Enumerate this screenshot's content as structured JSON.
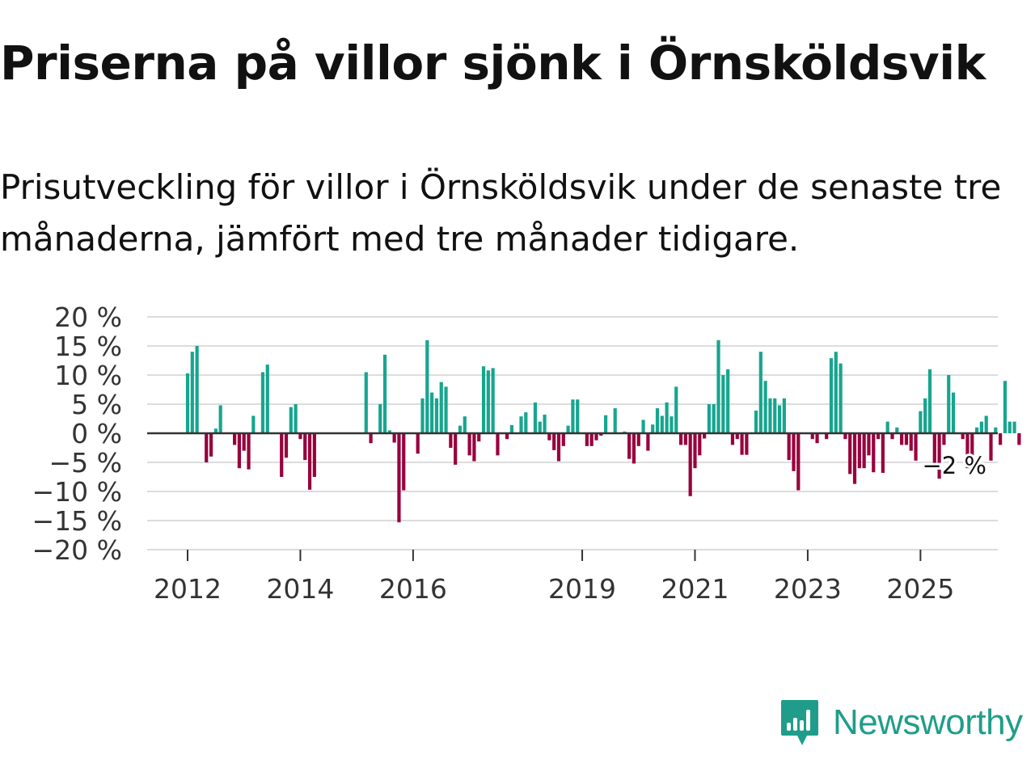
{
  "title": "Priserna på villor sjönk i Örnsköldsvik",
  "subtitle": "Prisutveckling för villor i Örnsköldsvik under de senaste tre månaderna, jämfört med tre månader tidigare.",
  "logo": {
    "text": "Newsworthy",
    "icon": "newsworthy-chart-icon"
  },
  "colors": {
    "positive": "#17a58f",
    "negative": "#98003d",
    "grid": "#dcdcdc",
    "zero_line": "#333333",
    "brand": "#1f9d8a"
  },
  "chart_data": {
    "type": "bar",
    "title": "Priserna på villor sjönk i Örnsköldsvik",
    "ylabel": "",
    "xlabel": "",
    "unit": "%",
    "ylim": [
      -20,
      20
    ],
    "y_ticks": [
      20,
      15,
      10,
      5,
      0,
      -5,
      -10,
      -15,
      -20
    ],
    "y_tick_labels": [
      "20 %",
      "15 %",
      "10 %",
      "5 %",
      "0 %",
      "−5 %",
      "−10 %",
      "−15 %",
      "−20 %"
    ],
    "x_start": "2012-01",
    "x_ticks": [
      {
        "label": "2012",
        "month_index": 0
      },
      {
        "label": "2014",
        "month_index": 24
      },
      {
        "label": "2016",
        "month_index": 48
      },
      {
        "label": "2019",
        "month_index": 84
      },
      {
        "label": "2021",
        "month_index": 108
      },
      {
        "label": "2023",
        "month_index": 132
      },
      {
        "label": "2025",
        "month_index": 156
      }
    ],
    "values": [
      10.3,
      14,
      15,
      0,
      -5,
      -4,
      0.8,
      4.8,
      0,
      0,
      -2,
      -6,
      -3,
      -6.2,
      3,
      0,
      10.5,
      11.8,
      0,
      0,
      -7.5,
      -4.2,
      4.5,
      5,
      -1,
      -4.6,
      -9.7,
      -7.5,
      0,
      0,
      0,
      0,
      0,
      0,
      0,
      0,
      0,
      0,
      10.5,
      -1.7,
      0,
      5,
      13.5,
      0.5,
      -1.6,
      -15.3,
      -9.8,
      0,
      0,
      -3.5,
      6,
      16,
      7,
      6,
      8.8,
      8,
      -2.5,
      -5.4,
      1.3,
      2.9,
      -3.8,
      -4.8,
      -1.4,
      11.5,
      10.8,
      11.2,
      -3.8,
      0,
      -1,
      1.4,
      0,
      2.9,
      3.6,
      0,
      5.3,
      2,
      3.2,
      -1.2,
      -2.9,
      -4.8,
      -2.2,
      1.3,
      5.8,
      5.8,
      0,
      -2.2,
      -2.2,
      -1.2,
      -0.4,
      3.1,
      0,
      4.3,
      0,
      0.3,
      -4.4,
      -5.2,
      -2.2,
      2.3,
      -3,
      1.5,
      4.3,
      3,
      5.3,
      2.9,
      8,
      -2,
      -2,
      -10.8,
      -6,
      -3.8,
      -0.9,
      5,
      5,
      16,
      10,
      11,
      -2,
      -1,
      -3.7,
      -3.7,
      0,
      3.9,
      14,
      9,
      6,
      6,
      4.8,
      6,
      -4.6,
      -6.5,
      -9.8,
      0,
      0,
      -1,
      -1.7,
      0,
      -1,
      12.9,
      14,
      12,
      -1,
      -7,
      -8.7,
      -6,
      -6,
      -3.8,
      -6.7,
      -1,
      -6.8,
      2,
      -1,
      1,
      -2,
      -2,
      -3,
      -4.7,
      3.8,
      6,
      11,
      -6,
      -7.8,
      -2,
      10,
      7,
      0,
      -1,
      -6,
      -3.8,
      1,
      2,
      3,
      -4.7,
      1,
      -2,
      9,
      2,
      2,
      -2
    ],
    "last_value_label": "−2 %"
  }
}
